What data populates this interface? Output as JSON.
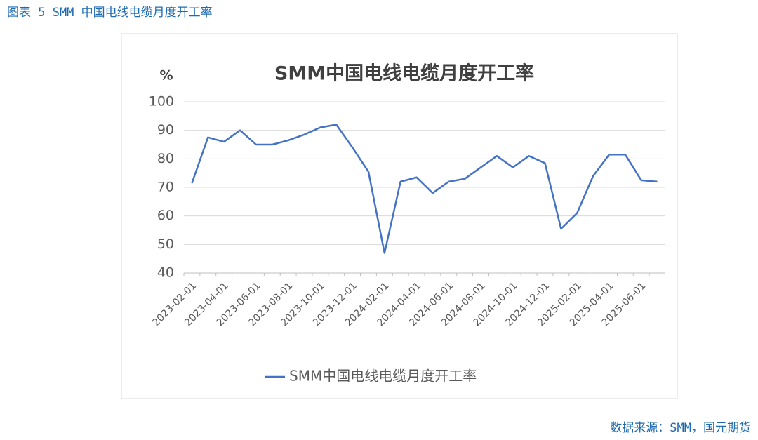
{
  "header": {
    "title": "图表 5 SMM 中国电线电缆月度开工率"
  },
  "source": "数据来源：SMM，国元期货",
  "chart_data": {
    "type": "line",
    "title": "SMM中国电线电缆月度开工率",
    "y_label": "%",
    "categories": [
      "2023-02-01",
      null,
      "2023-04-01",
      null,
      "2023-06-01",
      null,
      "2023-08-01",
      null,
      "2023-10-01",
      null,
      "2023-12-01",
      null,
      "2024-02-01",
      null,
      "2024-04-01",
      null,
      "2024-06-01",
      null,
      "2024-08-01",
      null,
      "2024-10-01",
      null,
      "2024-12-01",
      null,
      "2025-02-01",
      null,
      "2025-04-01",
      null,
      "2025-06-01",
      null
    ],
    "series": [
      {
        "name": "SMM中国电线电缆月度开工率",
        "color": "#4472c4",
        "values": [
          71.5,
          87.5,
          86,
          90,
          85,
          85,
          86.5,
          88.5,
          91,
          92,
          84,
          75.5,
          47,
          72,
          73.5,
          68,
          72,
          73,
          77,
          81,
          77,
          81,
          78.5,
          55.5,
          61,
          74,
          81.5,
          81.5,
          72.5,
          72
        ]
      }
    ],
    "ylim": [
      40,
      100
    ],
    "yticks": [
      40,
      50,
      60,
      70,
      80,
      90,
      100
    ],
    "grid": true,
    "legend": "bottom"
  }
}
